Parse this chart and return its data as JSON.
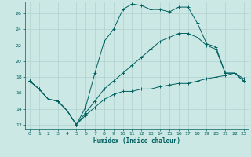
{
  "title": "",
  "xlabel": "Humidex (Indice chaleur)",
  "ylabel": "",
  "bg_color": "#cce8e4",
  "grid_color": "#aaccca",
  "line_color": "#006060",
  "xlim": [
    -0.5,
    23.5
  ],
  "ylim": [
    11.5,
    27.5
  ],
  "yticks": [
    12,
    14,
    16,
    18,
    20,
    22,
    24,
    26
  ],
  "xticks": [
    0,
    1,
    2,
    3,
    4,
    5,
    6,
    7,
    8,
    9,
    10,
    11,
    12,
    13,
    14,
    15,
    16,
    17,
    18,
    19,
    20,
    21,
    22,
    23
  ],
  "series": [
    [
      17.5,
      16.5,
      15.2,
      15.0,
      13.8,
      12.0,
      14.2,
      18.5,
      22.5,
      24.0,
      26.5,
      27.2,
      27.0,
      26.5,
      26.5,
      26.2,
      26.8,
      26.8,
      24.8,
      22.2,
      21.8,
      18.5,
      18.5,
      17.8
    ],
    [
      17.5,
      16.5,
      15.2,
      15.0,
      13.8,
      12.0,
      13.2,
      14.2,
      15.2,
      15.8,
      16.2,
      16.2,
      16.5,
      16.5,
      16.8,
      17.0,
      17.2,
      17.2,
      17.5,
      17.8,
      18.0,
      18.2,
      18.5,
      17.5
    ],
    [
      17.5,
      16.5,
      15.2,
      15.0,
      13.8,
      12.0,
      13.5,
      15.0,
      16.5,
      17.5,
      18.5,
      19.5,
      20.5,
      21.5,
      22.5,
      23.0,
      23.5,
      23.5,
      23.0,
      22.0,
      21.5,
      18.5,
      18.5,
      17.5
    ]
  ]
}
